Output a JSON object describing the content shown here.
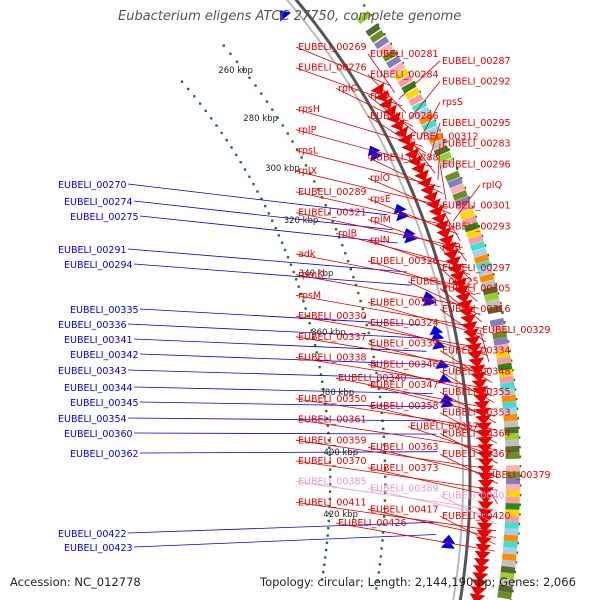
{
  "title": "Eubacterium eligens ATCC 27750, complete genome",
  "accession": "Accession: NC_012778",
  "summary": "Topology: circular; Length: 2,144,190 bp; Genes: 2,066",
  "colors": {
    "forward": "#0000e6",
    "reverse": "#e60000",
    "faded": "#ee99cc",
    "skew": "#227722",
    "backbone": "#888888"
  },
  "kbp_ticks": [
    "260 kbp",
    "280 kbp",
    "300 kbp",
    "320 kbp",
    "340 kbp",
    "360 kbp",
    "380 kbp",
    "400 kbp",
    "420 kbp"
  ],
  "left_labels": [
    "EUBELI_00270",
    "EUBELI_00274",
    "EUBELI_00275",
    "EUBELI_00291",
    "EUBELI_00294",
    "EUBELI_00335",
    "EUBELI_00336",
    "EUBELI_00341",
    "EUBELI_00342",
    "EUBELI_00343",
    "EUBELI_00344",
    "EUBELI_00345",
    "EUBELI_00354",
    "EUBELI_00360",
    "EUBELI_00362",
    "EUBELI_00422",
    "EUBELI_00423"
  ],
  "right_labels": [
    {
      "t": "EUBELI_00269"
    },
    {
      "t": "EUBELI_00281"
    },
    {
      "t": "EUBELI_00287"
    },
    {
      "t": "EUBELI_00276"
    },
    {
      "t": "EUBELI_00284"
    },
    {
      "t": "EUBELI_00292"
    },
    {
      "t": "rplC"
    },
    {
      "t": "rplD"
    },
    {
      "t": "rpsS"
    },
    {
      "t": "rpsH"
    },
    {
      "t": "EUBELI_00286"
    },
    {
      "t": "EUBELI_00295"
    },
    {
      "t": "rplP"
    },
    {
      "t": "EUBELI_00312"
    },
    {
      "t": "EUBELI_00283"
    },
    {
      "t": "rpsL"
    },
    {
      "t": "EUBELI_00288"
    },
    {
      "t": "EUBELI_00296"
    },
    {
      "t": "rplX"
    },
    {
      "t": "rplO"
    },
    {
      "t": "rplQ"
    },
    {
      "t": "EUBELI_00289"
    },
    {
      "t": "rpsE"
    },
    {
      "t": "EUBELI_00301"
    },
    {
      "t": "EUBELI_00321"
    },
    {
      "t": "rplM"
    },
    {
      "t": "EUBELI_00293"
    },
    {
      "t": "rplB"
    },
    {
      "t": "rplN"
    },
    {
      "t": "rplR"
    },
    {
      "t": "adk"
    },
    {
      "t": "EUBELI_00326"
    },
    {
      "t": "EUBELI_00297"
    },
    {
      "t": "rpmD"
    },
    {
      "t": "EUBELI_00325"
    },
    {
      "t": "EUBELI_00305"
    },
    {
      "t": "rpsM"
    },
    {
      "t": "EUBELI_00331"
    },
    {
      "t": "EUBELI_00316"
    },
    {
      "t": "EUBELI_00330"
    },
    {
      "t": "EUBELI_00324"
    },
    {
      "t": "EUBELI_00329"
    },
    {
      "t": "EUBELI_00337"
    },
    {
      "t": "EUBELI_00339"
    },
    {
      "t": "EUBELI_00334"
    },
    {
      "t": "EUBELI_00338"
    },
    {
      "t": "EUBELI_00346"
    },
    {
      "t": "EUBELI_00348"
    },
    {
      "t": "EUBELI_00340"
    },
    {
      "t": "EUBELI_00347"
    },
    {
      "t": "EUBELI_00355"
    },
    {
      "t": "EUBELI_00350"
    },
    {
      "t": "EUBELI_00358"
    },
    {
      "t": "EUBELI_00353"
    },
    {
      "t": "EUBELI_00361"
    },
    {
      "t": "EUBELI_00357"
    },
    {
      "t": "EUBELI_00364"
    },
    {
      "t": "EUBELI_00359"
    },
    {
      "t": "EUBELI_00363"
    },
    {
      "t": "EUBELI_00367"
    },
    {
      "t": "EUBELI_00370"
    },
    {
      "t": "EUBELI_00373"
    },
    {
      "t": "EUBELI_00379"
    },
    {
      "t": "EUBELI_00385",
      "faded": true
    },
    {
      "t": "EUBELI_00389",
      "faded": true
    },
    {
      "t": "EUBELI_00402",
      "faded": true
    },
    {
      "t": "EUBELI_00411"
    },
    {
      "t": "EUBELI_00417"
    },
    {
      "t": "EUBELI_00420"
    },
    {
      "t": "EUBELI_00426"
    }
  ]
}
